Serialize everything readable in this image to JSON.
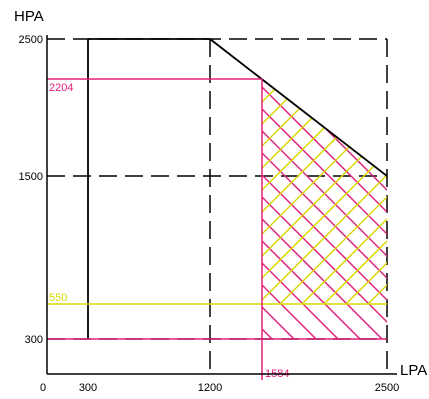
{
  "chart_data": {
    "type": "area",
    "xlabel": "LPA",
    "ylabel": "HPA",
    "xlim": [
      0,
      2500
    ],
    "ylim": [
      0,
      2500
    ],
    "x_ticks": [
      "0",
      "300",
      "1200",
      "2500"
    ],
    "y_ticks": [
      "300",
      "1500",
      "2500"
    ],
    "x_tick_values": [
      0,
      300,
      1200,
      2500
    ],
    "y_tick_values": [
      300,
      1500,
      2500
    ],
    "outer_envelope": {
      "color": "#000000",
      "points": [
        [
          300,
          300
        ],
        [
          300,
          2500
        ],
        [
          1200,
          2500
        ],
        [
          2500,
          1500
        ],
        [
          2500,
          300
        ]
      ]
    },
    "dashed_guides": {
      "color": "#000000",
      "lines": [
        {
          "orientation": "horizontal",
          "value": 2500
        },
        {
          "orientation": "horizontal",
          "value": 1500
        },
        {
          "orientation": "horizontal",
          "value": 300
        },
        {
          "orientation": "vertical",
          "value": 1200
        },
        {
          "orientation": "vertical",
          "value": 2500
        }
      ]
    },
    "reference_lines": [
      {
        "name": "2204",
        "label": "2204",
        "orientation": "horizontal",
        "value": 2204,
        "color": "#e0207a"
      },
      {
        "name": "550",
        "label": "550",
        "orientation": "horizontal",
        "value": 550,
        "color": "#d8d800"
      },
      {
        "name": "300",
        "orientation": "horizontal",
        "value": 300,
        "color": "#e0207a"
      },
      {
        "name": "1584",
        "label": "1584",
        "orientation": "vertical",
        "value": 1584,
        "color": "#e0207a"
      }
    ],
    "hatched_regions": [
      {
        "name": "pink-region",
        "color": "#e0207a",
        "x_min": 1584,
        "y_min": 300
      },
      {
        "name": "yellow-region",
        "color": "#d8d800",
        "x_min": 1584,
        "y_min": 550
      }
    ],
    "grid": false
  }
}
